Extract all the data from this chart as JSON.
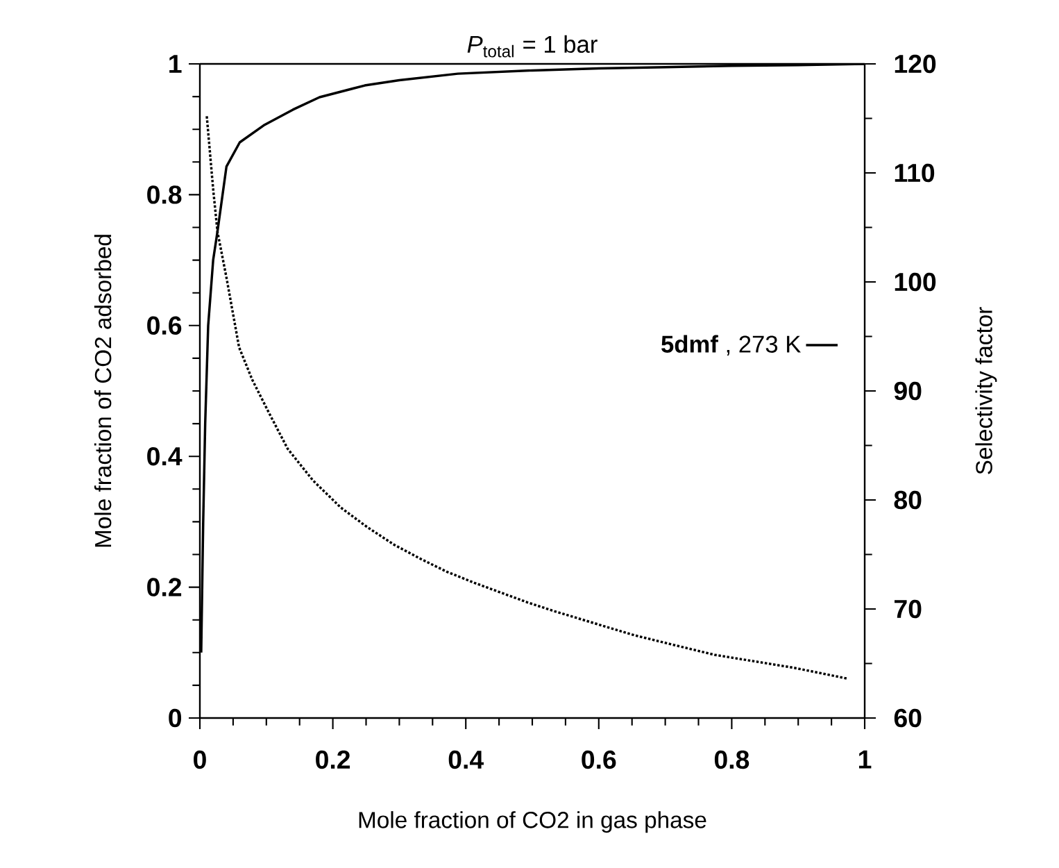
{
  "chart_data": {
    "type": "line",
    "title": "*P*$_{total}$  = 1 bar",
    "xlabel": "Mole fraction of CO2 in gas phase",
    "ylabel": "Mole fraction of CO2 adsorbed",
    "y2label": "Selectivity factor",
    "xlim": [
      0,
      1
    ],
    "xticks": [
      0,
      0.2,
      0.4,
      0.6,
      0.8,
      1
    ],
    "ylim": [
      0,
      1
    ],
    "yticks": [
      0,
      0.2,
      0.4,
      0.6,
      0.8,
      1
    ],
    "y2lim": [
      60,
      120
    ],
    "y2ticks": [
      60,
      70,
      80,
      90,
      100,
      110,
      120
    ],
    "legend": "right",
    "marker": "none",
    "series": [
      {
        "name": "**5dmf**  , 273 K",
        "color": "#000000",
        "line_style": "solid",
        "x": [
          0.002,
          0.005,
          0.008,
          0.0125,
          0.02,
          0.0265,
          0.04,
          0.06,
          0.096,
          0.14,
          0.18,
          0.248,
          0.3,
          0.388,
          0.5,
          0.6,
          0.7,
          0.8,
          0.9,
          1.0
        ],
        "values": [
          0.1,
          0.3,
          0.45,
          0.6,
          0.7,
          0.744,
          0.843,
          0.88,
          0.906,
          0.93,
          0.949,
          0.967,
          0.975,
          0.985,
          0.99,
          0.993,
          0.995,
          0.997,
          0.998,
          1.0
        ]
      },
      {
        "color": "#000000",
        "line_style": "dotted",
        "axis": "y2",
        "x": [
          0.0104,
          0.02,
          0.0265,
          0.04,
          0.059,
          0.079,
          0.103,
          0.132,
          0.17,
          0.212,
          0.252,
          0.292,
          0.332,
          0.372,
          0.413,
          0.453,
          0.493,
          0.533,
          0.593,
          0.653,
          0.713,
          0.774,
          0.834,
          0.894,
          0.935,
          0.975
        ],
        "values": [
          115.2,
          108.5,
          104.6,
          100.4,
          94.0,
          91.0,
          88.1,
          84.7,
          81.8,
          79.3,
          77.5,
          75.9,
          74.6,
          73.4,
          72.4,
          71.5,
          70.6,
          69.8,
          68.7,
          67.6,
          66.7,
          65.8,
          65.2,
          64.6,
          64.1,
          63.6
        ]
      }
    ]
  }
}
